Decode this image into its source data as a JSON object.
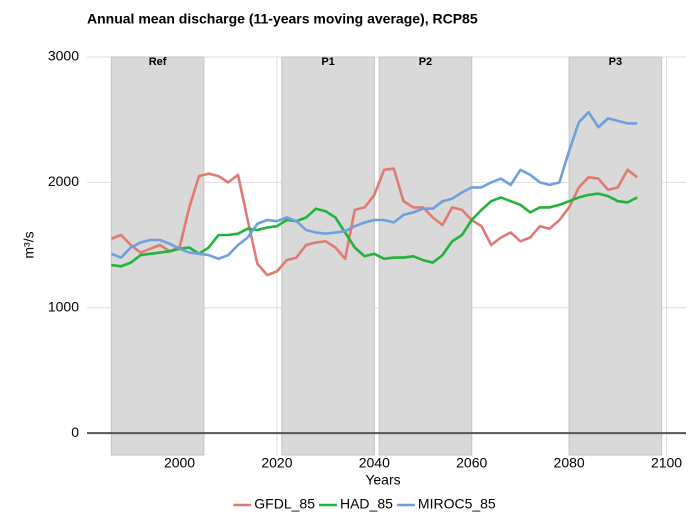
{
  "chart_data": {
    "type": "line",
    "title": "Annual mean discharge (11-years moving average), RCP85",
    "x_label": "Years",
    "y_label": "m³/s",
    "x": [
      1986,
      1988,
      1990,
      1992,
      1994,
      1996,
      1998,
      2000,
      2002,
      2004,
      2006,
      2008,
      2010,
      2012,
      2014,
      2016,
      2018,
      2020,
      2022,
      2024,
      2026,
      2028,
      2030,
      2032,
      2034,
      2036,
      2038,
      2040,
      2042,
      2044,
      2046,
      2048,
      2050,
      2052,
      2054,
      2056,
      2058,
      2060,
      2062,
      2064,
      2066,
      2068,
      2070,
      2072,
      2074,
      2076,
      2078,
      2080,
      2082,
      2084,
      2086,
      2088,
      2090,
      2092,
      2094
    ],
    "series": [
      {
        "name": "GFDL_85",
        "color": "#e07b73",
        "values": [
          1550,
          1580,
          1500,
          1440,
          1470,
          1500,
          1450,
          1480,
          1800,
          2050,
          2070,
          2050,
          2000,
          2060,
          1700,
          1350,
          1260,
          1290,
          1380,
          1400,
          1500,
          1520,
          1530,
          1480,
          1390,
          1780,
          1800,
          1900,
          2100,
          2110,
          1850,
          1800,
          1800,
          1720,
          1660,
          1800,
          1780,
          1700,
          1650,
          1500,
          1560,
          1600,
          1530,
          1560,
          1650,
          1630,
          1700,
          1800,
          1960,
          2040,
          2030,
          1940,
          1960,
          2100,
          2040
        ]
      },
      {
        "name": "HAD_85",
        "color": "#22b33a",
        "values": [
          1340,
          1330,
          1360,
          1420,
          1430,
          1440,
          1450,
          1470,
          1480,
          1430,
          1480,
          1580,
          1580,
          1590,
          1630,
          1620,
          1640,
          1650,
          1700,
          1690,
          1720,
          1790,
          1770,
          1720,
          1600,
          1480,
          1410,
          1430,
          1390,
          1400,
          1400,
          1410,
          1380,
          1360,
          1420,
          1530,
          1580,
          1700,
          1780,
          1850,
          1880,
          1850,
          1820,
          1760,
          1800,
          1800,
          1820,
          1850,
          1880,
          1900,
          1910,
          1890,
          1850,
          1840,
          1880
        ]
      },
      {
        "name": "MIROC5_85",
        "color": "#6f9fdc",
        "values": [
          1430,
          1400,
          1480,
          1520,
          1540,
          1540,
          1510,
          1470,
          1440,
          1430,
          1420,
          1390,
          1420,
          1500,
          1560,
          1670,
          1700,
          1690,
          1720,
          1690,
          1620,
          1600,
          1590,
          1600,
          1610,
          1650,
          1680,
          1700,
          1700,
          1680,
          1740,
          1760,
          1790,
          1790,
          1850,
          1870,
          1920,
          1960,
          1960,
          2000,
          2030,
          1980,
          2100,
          2060,
          2000,
          1980,
          2000,
          2250,
          2480,
          2560,
          2440,
          2510,
          2490,
          2470,
          2470
        ]
      }
    ],
    "periods": [
      {
        "label": "Ref",
        "start": 1986,
        "end": 2005
      },
      {
        "label": "P1",
        "start": 2021,
        "end": 2040
      },
      {
        "label": "P2",
        "start": 2041,
        "end": 2060
      },
      {
        "label": "P3",
        "start": 2080,
        "end": 2099
      }
    ],
    "hline": 0,
    "xlim": [
      1981,
      2104
    ],
    "xticks": [
      2000,
      2020,
      2040,
      2060,
      2080,
      2100
    ],
    "ylim": [
      -175,
      3000
    ],
    "yticks": [
      0,
      1000,
      2000,
      3000
    ],
    "grid": true,
    "legend": "bottom"
  }
}
